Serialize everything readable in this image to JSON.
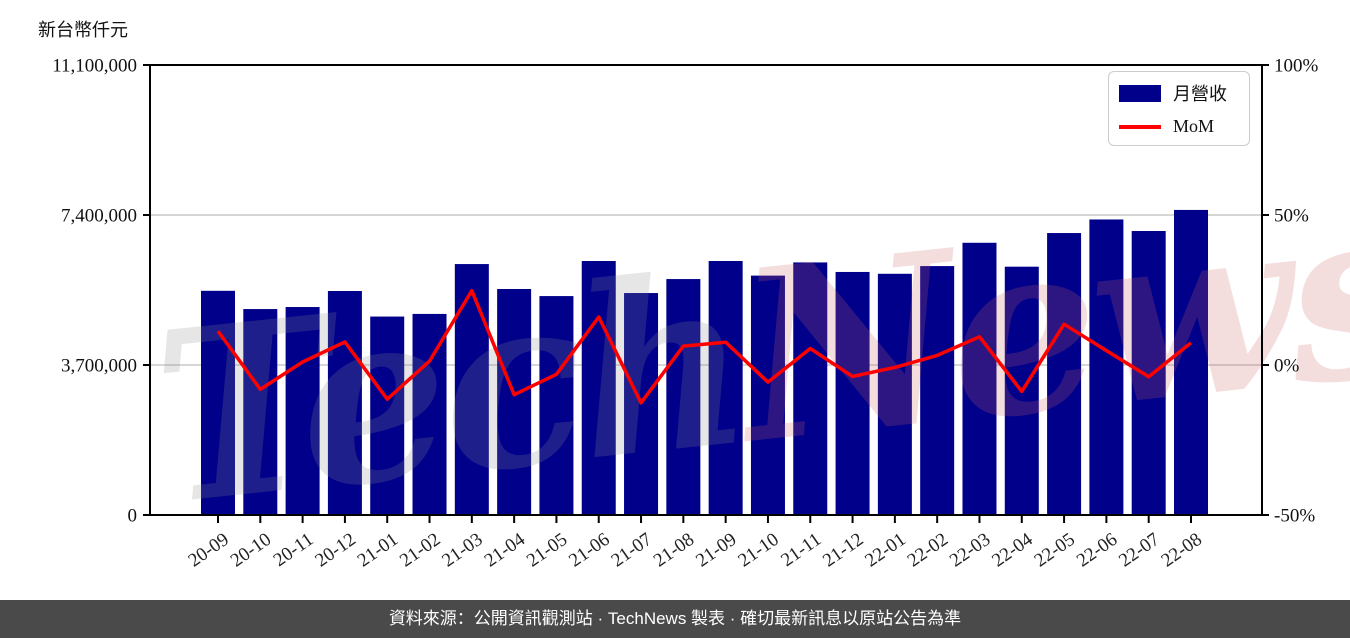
{
  "chart": {
    "y_axis_title": "新台幣仟元",
    "legend": {
      "bar_label": "月營收",
      "line_label": "MoM"
    },
    "colors": {
      "bar": "#00008b",
      "line": "#ff0000",
      "grid": "#c8c8c8",
      "axis": "#000000",
      "watermark_gray": "rgba(140,140,140,0.22)",
      "watermark_pink": "rgba(205,100,100,0.22)",
      "footer_bg": "#4a4a4a"
    }
  },
  "chart_data": {
    "type": "bar+line",
    "title": "",
    "categories": [
      "20-09",
      "20-10",
      "20-11",
      "20-12",
      "21-01",
      "21-02",
      "21-03",
      "21-04",
      "21-05",
      "21-06",
      "21-07",
      "21-08",
      "21-09",
      "21-10",
      "21-11",
      "21-12",
      "22-01",
      "22-02",
      "22-03",
      "22-04",
      "22-05",
      "22-06",
      "22-07",
      "22-08"
    ],
    "series": [
      {
        "name": "月營收",
        "type": "bar",
        "axis": "left",
        "unit": "新台幣仟元",
        "values": [
          5530000,
          5080000,
          5130000,
          5525000,
          4895000,
          4960000,
          6190000,
          5575000,
          5400000,
          6265000,
          5475000,
          5820000,
          6265000,
          5905000,
          6230000,
          5995000,
          5950000,
          6140000,
          6715000,
          6125000,
          6955000,
          7290000,
          7005000,
          7525000
        ]
      },
      {
        "name": "MoM",
        "type": "line",
        "axis": "right",
        "unit": "%",
        "values": [
          11.3,
          -8.1,
          1.0,
          7.7,
          -11.4,
          1.3,
          24.8,
          -9.9,
          -3.1,
          16.0,
          -12.6,
          6.3,
          7.6,
          -5.7,
          5.5,
          -3.8,
          -0.8,
          3.2,
          9.4,
          -8.8,
          13.6,
          4.8,
          -3.9,
          7.4
        ]
      }
    ],
    "left_axis": {
      "title": "新台幣仟元",
      "min": 0,
      "max": 11100000,
      "ticks": [
        11100000,
        7400000,
        3700000,
        0
      ]
    },
    "right_axis": {
      "min": -50,
      "max": 100,
      "ticks": [
        100,
        50,
        0,
        -50
      ],
      "unit": "%"
    },
    "legend_position": "upper right",
    "grid": "horizontal",
    "watermark": "TechNews"
  },
  "footer": {
    "text": "資料來源：公開資訊觀測站 · TechNews 製表 · 確切最新訊息以原站公告為準"
  }
}
